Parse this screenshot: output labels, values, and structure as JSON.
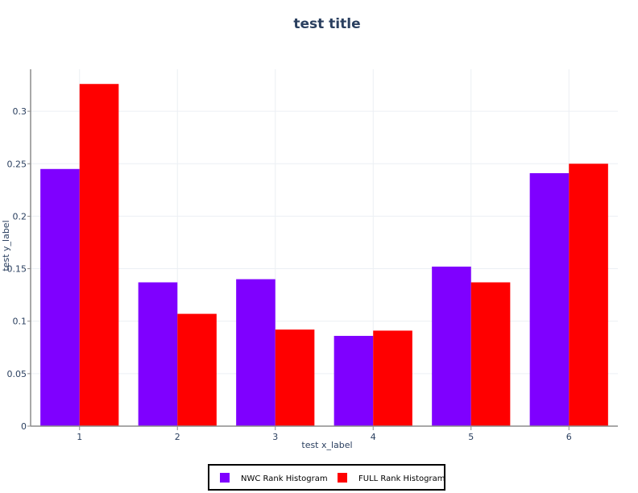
{
  "colors": {
    "NWC": "#7f00ff",
    "FULL": "#ff0000",
    "grid": "#eceff4",
    "axis": "#8c8c8c",
    "legend_border": "#000000",
    "background": "#ffffff"
  },
  "chart_data": {
    "type": "bar",
    "title": "test title",
    "xlabel": "test x_label",
    "ylabel": "test y_label",
    "categories": [
      "1",
      "2",
      "3",
      "4",
      "5",
      "6"
    ],
    "series": [
      {
        "name": "NWC  Rank Histogram",
        "color": "#7f00ff",
        "values": [
          0.245,
          0.137,
          0.14,
          0.086,
          0.152,
          0.241
        ]
      },
      {
        "name": "FULL  Rank Histogram",
        "color": "#ff0000",
        "values": [
          0.326,
          0.107,
          0.092,
          0.091,
          0.137,
          0.25
        ]
      }
    ],
    "ylim": [
      0,
      0.34
    ],
    "yticks": [
      0,
      0.05,
      0.1,
      0.15,
      0.2,
      0.25,
      0.3
    ],
    "ytick_labels": [
      "0",
      "0.05",
      "0.1",
      "0.15",
      "0.2",
      "0.25",
      "0.3"
    ],
    "grid": true,
    "legend_position": "bottom-center"
  }
}
